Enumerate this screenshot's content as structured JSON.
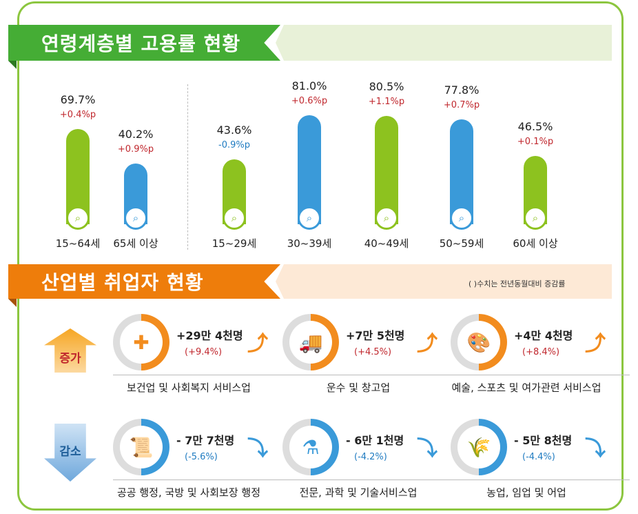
{
  "section1": {
    "title": "연령계층별 고용률 현황"
  },
  "section2": {
    "title": "산업별 취업자 현황",
    "note": "( )수치는 전년동월대비 증감률"
  },
  "colors": {
    "green": "#8dc21f",
    "blue": "#3a9ad9",
    "up_red": "#c0272d",
    "down_blue": "#1f7bc1",
    "orange": "#f28c1e"
  },
  "chart_data": {
    "type": "bar",
    "categories": [
      "15~64세",
      "65세 이상",
      "15~29세",
      "30~39세",
      "40~49세",
      "50~59세",
      "60세 이상"
    ],
    "values": [
      69.7,
      40.2,
      43.6,
      81.0,
      80.5,
      77.8,
      46.5
    ],
    "value_labels": [
      "69.7%",
      "40.2%",
      "43.6%",
      "81.0%",
      "80.5%",
      "77.8%",
      "46.5%"
    ],
    "changes": [
      "+0.4%p",
      "+0.9%p",
      "-0.9%p",
      "+0.6%p",
      "+1.1%p",
      "+0.7%p",
      "+0.1%p"
    ],
    "bar_colors": [
      "green",
      "blue",
      "green",
      "blue",
      "green",
      "blue",
      "green"
    ],
    "unit": "%"
  },
  "increase": {
    "label": "증가",
    "items": [
      {
        "amount": "+29만 4천명",
        "pct": "(+9.4%)",
        "name": "보건업 및 사회복지 서비스업",
        "icon": "first-aid-kit-icon"
      },
      {
        "amount": "+7만 5천명",
        "pct": "(+4.5%)",
        "name": "운수 및 창고업",
        "icon": "truck-icon"
      },
      {
        "amount": "+4만 4천명",
        "pct": "(+8.4%)",
        "name": "예술, 스포츠 및 여가관련 서비스업",
        "icon": "palette-icon"
      }
    ]
  },
  "decrease": {
    "label": "감소",
    "items": [
      {
        "amount": "- 7만 7천명",
        "pct": "(-5.6%)",
        "name": "공공 행정, 국방 및 사회보장 행정",
        "icon": "scroll-icon"
      },
      {
        "amount": "- 6만 1천명",
        "pct": "(-4.2%)",
        "name": "전문, 과학 및 기술서비스업",
        "icon": "flask-icon"
      },
      {
        "amount": "- 5만 8천명",
        "pct": "(-4.4%)",
        "name": "농업, 임업 및 어업",
        "icon": "wheat-icon"
      }
    ]
  }
}
